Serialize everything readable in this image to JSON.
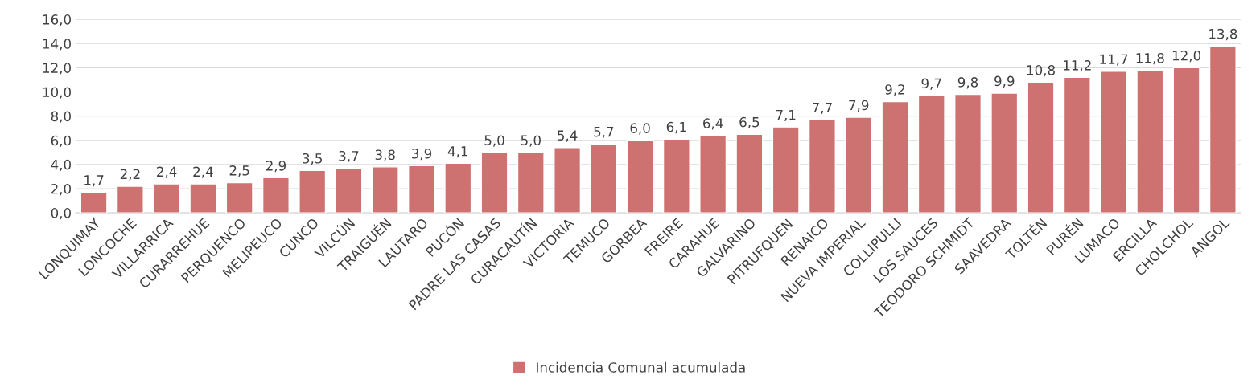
{
  "chart_data": {
    "type": "bar",
    "categories": [
      "LONQUIMAY",
      "LONCOCHE",
      "VILLARRICA",
      "CURARREHUE",
      "PERQUENCO",
      "MELIPEUCO",
      "CUNCO",
      "VILCÚN",
      "TRAIGUÉN",
      "LAUTARO",
      "PUCÓN",
      "PADRE LAS CASAS",
      "CURACAUTÍN",
      "VICTORIA",
      "TEMUCO",
      "GORBEA",
      "FREIRE",
      "CARAHUE",
      "GALVARINO",
      "PITRUFQUÉN",
      "RENAICO",
      "NUEVA IMPERIAL",
      "COLLIPULLI",
      "LOS SAUCES",
      "TEODORO SCHMIDT",
      "SAAVEDRA",
      "TOLTÉN",
      "PURÉN",
      "LUMACO",
      "ERCILLA",
      "CHOLCHOL",
      "ANGOL"
    ],
    "series": [
      {
        "name": "Incidencia Comunal acumulada",
        "color": "#cd7270",
        "values": [
          1.7,
          2.2,
          2.4,
          2.4,
          2.5,
          2.9,
          3.5,
          3.7,
          3.8,
          3.9,
          4.1,
          5.0,
          5.0,
          5.4,
          5.7,
          6.0,
          6.1,
          6.4,
          6.5,
          7.1,
          7.7,
          7.9,
          9.2,
          9.7,
          9.8,
          9.9,
          10.8,
          11.2,
          11.7,
          11.8,
          12.0,
          13.8
        ],
        "value_labels": [
          "1,7",
          "2,2",
          "2,4",
          "2,4",
          "2,5",
          "2,9",
          "3,5",
          "3,7",
          "3,8",
          "3,9",
          "4,1",
          "5,0",
          "5,0",
          "5,4",
          "5,7",
          "6,0",
          "6,1",
          "6,4",
          "6,5",
          "7,1",
          "7,7",
          "7,9",
          "9,2",
          "9,7",
          "9,8",
          "9,9",
          "10,8",
          "11,2",
          "11,7",
          "11,8",
          "12,0",
          "13,8"
        ]
      }
    ],
    "ylim": [
      0,
      16
    ],
    "yticks": [
      {
        "value": 0,
        "label": "0,0"
      },
      {
        "value": 2,
        "label": "2,0"
      },
      {
        "value": 4,
        "label": "4,0"
      },
      {
        "value": 6,
        "label": "6,0"
      },
      {
        "value": 8,
        "label": "8,0"
      },
      {
        "value": 10,
        "label": "10,0"
      },
      {
        "value": 12,
        "label": "12,0"
      },
      {
        "value": 14,
        "label": "14,0"
      },
      {
        "value": 16,
        "label": "16,0"
      }
    ],
    "grid": "y",
    "legend": "bottom"
  }
}
